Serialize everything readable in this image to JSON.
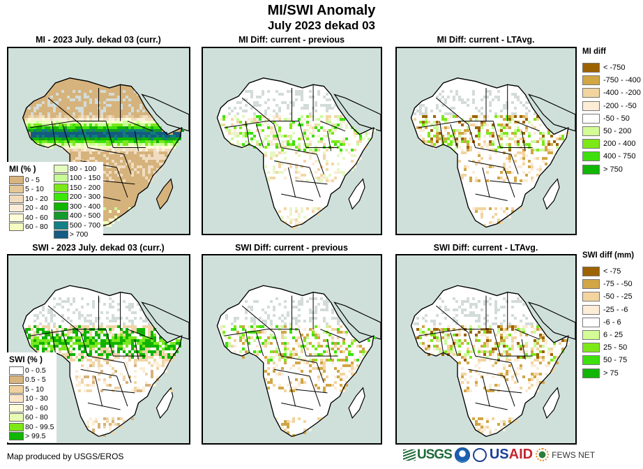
{
  "header": {
    "title": "MI/SWI Anomaly",
    "subtitle": "July 2023 dekad 03"
  },
  "colors": {
    "ocean": "#cfe0da",
    "land_default": "#ffffff",
    "no_data": "#d3dcd8",
    "border": "#000000"
  },
  "panels": [
    {
      "id": "mi-current",
      "title": "MI - 2023 July. dekad 03 (curr.)",
      "variable": "MI",
      "land_base": "#d6b37c",
      "palette": [
        "#d6b37c",
        "#e4c99a",
        "#f0dcc0",
        "#fbefd9",
        "#ffffd6",
        "#eeffbe",
        "#c8ff96",
        "#7ae81e",
        "#3de00c",
        "#10b400",
        "#129628",
        "#0f7c80",
        "#155a80"
      ],
      "inset_legend": {
        "title": "MI (% )",
        "col1": [
          {
            "label": "0 - 5",
            "color": "#d8b47e"
          },
          {
            "label": "5 - 10",
            "color": "#e5c897"
          },
          {
            "label": "10 - 20",
            "color": "#f1dbbd"
          },
          {
            "label": "20 - 40",
            "color": "#fbecd7"
          },
          {
            "label": "40 - 60",
            "color": "#fdfdd9"
          },
          {
            "label": "60 - 80",
            "color": "#f4fcc0"
          }
        ],
        "col2": [
          {
            "label": "80 - 100",
            "color": "#e4fcbe"
          },
          {
            "label": "100 - 150",
            "color": "#c8fb97"
          },
          {
            "label": "150 - 200",
            "color": "#7de817"
          },
          {
            "label": "200 - 300",
            "color": "#3ce80a"
          },
          {
            "label": "300 - 400",
            "color": "#10b600"
          },
          {
            "label": "400 - 500",
            "color": "#159a2c"
          },
          {
            "label": "500 - 700",
            "color": "#128084"
          },
          {
            "label": "> 700",
            "color": "#165c84"
          }
        ]
      }
    },
    {
      "id": "mi-diff-previous",
      "title": "MI Diff: current - previous",
      "variable": "MI diff",
      "land_base": "#ffffff",
      "palette": [
        "#fbecd7",
        "#f4d6a6",
        "#e6f8c4",
        "#c8fb97",
        "#7de817",
        "#3de00c"
      ]
    },
    {
      "id": "mi-diff-ltavg",
      "title": "MI Diff: current - LTAvg.",
      "variable": "MI diff",
      "land_base": "#ffffff",
      "palette": [
        "#fbecd7",
        "#f3d49f",
        "#d1a645",
        "#9c6300",
        "#c8fb97",
        "#7de817"
      ]
    },
    {
      "id": "swi-current",
      "title": "SWI - 2023 July. dekad 03 (curr.)",
      "variable": "SWI",
      "land_base": "#ffffff",
      "palette": [
        "#d6b37c",
        "#f0d5a8",
        "#fbeed7",
        "#ffffd6",
        "#eeffbe",
        "#7ae81e",
        "#10b400"
      ],
      "inset_legend": {
        "title": "SWI (% )",
        "col1": [
          {
            "label": "0 - 0.5",
            "color": "#ffffff"
          },
          {
            "label": "0.5 - 5",
            "color": "#d8b47e"
          },
          {
            "label": "5 - 10",
            "color": "#f0d29f"
          },
          {
            "label": "10 - 30",
            "color": "#fde5c8"
          },
          {
            "label": "30 - 60",
            "color": "#fdfdd9"
          },
          {
            "label": "60 - 80",
            "color": "#eafcb4"
          },
          {
            "label": "80 - 99.5",
            "color": "#7de817"
          },
          {
            "label": "> 99.5",
            "color": "#10b600"
          }
        ]
      }
    },
    {
      "id": "swi-diff-previous",
      "title": "SWI Diff: current - previous",
      "variable": "SWI diff",
      "land_base": "#ffffff",
      "palette": [
        "#fbecd7",
        "#f3d49f",
        "#d1a645",
        "#c8fb97",
        "#7de817",
        "#3de00c"
      ]
    },
    {
      "id": "swi-diff-ltavg",
      "title": "SWI Diff: current - LTAvg.",
      "variable": "SWI diff",
      "land_base": "#ffffff",
      "palette": [
        "#fbecd7",
        "#f3d49f",
        "#d1a645",
        "#9c6300",
        "#c8fb97",
        "#7de817"
      ]
    }
  ],
  "legends": {
    "mi_diff": {
      "title": "MI diff",
      "items": [
        {
          "label": "< -750",
          "color": "#9c6300"
        },
        {
          "label": "-750 - -400",
          "color": "#d1a645"
        },
        {
          "label": "-400 - -200",
          "color": "#f3d49f"
        },
        {
          "label": "-200 - -50",
          "color": "#fdedd6"
        },
        {
          "label": "-50 - 50",
          "color": "#ffffff"
        },
        {
          "label": "50 - 200",
          "color": "#d4fc96"
        },
        {
          "label": "200 - 400",
          "color": "#7de817"
        },
        {
          "label": "400 - 750",
          "color": "#3de00c"
        },
        {
          "label": "> 750",
          "color": "#10b600"
        }
      ]
    },
    "swi_diff": {
      "title": "SWI diff (mm)",
      "items": [
        {
          "label": "< -75",
          "color": "#9c6300"
        },
        {
          "label": "-75 - -50",
          "color": "#d1a645"
        },
        {
          "label": "-50 - -25",
          "color": "#f3d49f"
        },
        {
          "label": "-25 - -6",
          "color": "#fdedd6"
        },
        {
          "label": "-6 - 6",
          "color": "#ffffff"
        },
        {
          "label": "6 - 25",
          "color": "#d4fc96"
        },
        {
          "label": "25 - 50",
          "color": "#7de817"
        },
        {
          "label": "50 - 75",
          "color": "#3de00c"
        },
        {
          "label": "> 75",
          "color": "#10b600"
        }
      ]
    }
  },
  "footer": {
    "credit": "Map produced by USGS/EROS",
    "logos": {
      "usgs": "USGS",
      "usaid_us": "US",
      "usaid_aid": "AID",
      "fews": "FEWS NET"
    }
  }
}
